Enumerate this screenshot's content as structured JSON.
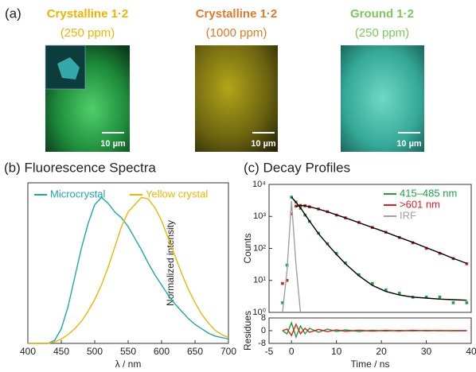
{
  "panel_a": {
    "label": "(a)",
    "images": [
      {
        "title": "Crystalline 1·2",
        "subtitle": "(250 ppm)",
        "scale": "10 µm"
      },
      {
        "title": "Crystalline 1·2",
        "subtitle": "(1000 ppm)",
        "scale": "10 µm"
      },
      {
        "title": "Ground 1·2",
        "subtitle": "(250 ppm)",
        "scale": "10 µm"
      }
    ]
  },
  "chart_data": [
    {
      "type": "line",
      "title": "(b) Fluorescence Spectra",
      "xlabel": "λ / nm",
      "ylabel": "Normalized intensity",
      "x": [
        400,
        410,
        420,
        430,
        440,
        450,
        460,
        470,
        480,
        490,
        500,
        510,
        520,
        530,
        540,
        550,
        560,
        570,
        580,
        590,
        600,
        610,
        620,
        630,
        640,
        650,
        660,
        670,
        680,
        690,
        700
      ],
      "series": [
        {
          "name": "Microcrystal",
          "color": "#1aa9a9",
          "style": "line",
          "values": [
            0,
            0,
            0,
            0,
            0.02,
            0.1,
            0.25,
            0.45,
            0.65,
            0.82,
            0.95,
            1.0,
            0.96,
            0.9,
            0.86,
            0.8,
            0.72,
            0.64,
            0.55,
            0.47,
            0.4,
            0.33,
            0.27,
            0.22,
            0.17,
            0.13,
            0.1,
            0.07,
            0.05,
            0.04,
            0.03
          ]
        },
        {
          "name": "Yellow crystal",
          "color": "#f0b400",
          "style": "line",
          "values": [
            0,
            0,
            0,
            0,
            0.01,
            0.03,
            0.06,
            0.1,
            0.15,
            0.22,
            0.3,
            0.4,
            0.52,
            0.66,
            0.8,
            0.9,
            0.95,
            1.0,
            0.99,
            0.93,
            0.84,
            0.72,
            0.6,
            0.48,
            0.37,
            0.28,
            0.2,
            0.14,
            0.09,
            0.06,
            0.04
          ]
        }
      ],
      "xlim": [
        400,
        700
      ],
      "ylim": [
        0,
        1.1
      ],
      "xticks": [
        400,
        450,
        500,
        550,
        600,
        650,
        700
      ],
      "legend": "top"
    },
    {
      "type": "line",
      "title": "(c) Decay Profiles",
      "ylabel": "Counts",
      "ylog": true,
      "x": [
        -2,
        -1,
        0,
        1,
        2,
        3,
        4,
        6,
        8,
        10,
        12,
        15,
        18,
        21,
        24,
        27,
        30,
        33,
        36,
        39
      ],
      "series": [
        {
          "name": "415–485 nm",
          "color": "#1ea03c",
          "style": "points",
          "values": [
            2,
            30,
            4000,
            2800,
            1800,
            1100,
            700,
            300,
            140,
            70,
            35,
            15,
            8,
            5,
            4,
            3,
            3,
            3,
            2,
            2
          ]
        },
        {
          "name": ">601 nm",
          "color": "#e0201a",
          "style": "points",
          "values": [
            8,
            10,
            1200,
            2100,
            2200,
            2150,
            2000,
            1700,
            1400,
            1100,
            900,
            650,
            450,
            320,
            220,
            150,
            100,
            70,
            48,
            33
          ]
        },
        {
          "name": "IRF",
          "color": "#a0a0a0",
          "style": "line",
          "values": [
            1,
            20,
            3000,
            30,
            1,
            null,
            null,
            null,
            null,
            null,
            null,
            null,
            null,
            null,
            null,
            null,
            null,
            null,
            null,
            null
          ]
        },
        {
          "color": "#000000",
          "style": "line",
          "values": [
            null,
            null,
            4000,
            2750,
            1850,
            1150,
            720,
            290,
            135,
            65,
            33,
            14,
            7,
            4.5,
            3.5,
            3,
            2.8,
            2.6,
            2.5,
            2.4
          ]
        },
        {
          "color": "#000000",
          "style": "line",
          "values": [
            null,
            null,
            null,
            2050,
            2200,
            2150,
            2000,
            1700,
            1400,
            1120,
            900,
            640,
            450,
            320,
            220,
            155,
            105,
            72,
            49,
            34
          ]
        }
      ],
      "xlim": [
        -5,
        40
      ],
      "ylim": [
        1,
        10000
      ],
      "yticks": [
        {
          "value": 1,
          "label": "10⁰"
        },
        {
          "value": 10,
          "label": "10¹"
        },
        {
          "value": 100,
          "label": "10²"
        },
        {
          "value": 1000,
          "label": "10³"
        },
        {
          "value": 10000,
          "label": "10⁴"
        }
      ],
      "legend": "top-right"
    },
    {
      "type": "line",
      "xlabel": "Time / ns",
      "ylabel": "Residues",
      "x": [
        -2,
        -1,
        0,
        1,
        2,
        3,
        4,
        6,
        8,
        10,
        12,
        15,
        18,
        21,
        24,
        27,
        30,
        33,
        36,
        39
      ],
      "series": [
        {
          "color": "#1ea03c",
          "style": "line",
          "values": [
            0,
            -2,
            5,
            -4,
            3,
            -2,
            1.5,
            -1,
            1,
            -0.5,
            0.5,
            -0.5,
            0.3,
            -0.3,
            0.2,
            -0.2,
            0.2,
            -0.1,
            0.1,
            0
          ]
        },
        {
          "color": "#e0201a",
          "style": "line",
          "values": [
            0,
            1,
            -3,
            4,
            -2,
            1.5,
            -1,
            0.8,
            -0.6,
            0.5,
            -0.4,
            0.3,
            -0.3,
            0.2,
            -0.2,
            0.2,
            -0.1,
            0.1,
            -0.1,
            0
          ]
        }
      ],
      "xlim": [
        -5,
        40
      ],
      "ylim": [
        -8,
        8
      ],
      "xticks": [
        -5,
        0,
        10,
        20,
        30,
        40
      ],
      "yticks": [
        -8,
        0,
        8
      ]
    }
  ]
}
